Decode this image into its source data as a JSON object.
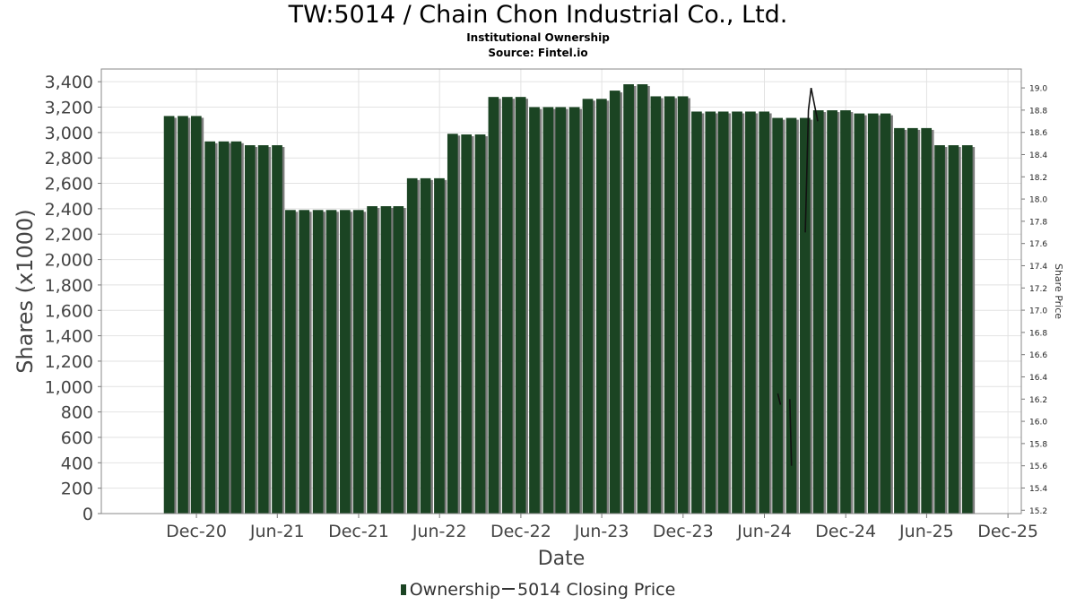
{
  "title": "TW:5014 / Chain Chon Industrial Co., Ltd.",
  "subtitle": "Institutional Ownership",
  "source": "Source: Fintel.io",
  "legend": {
    "ownership": "Ownership",
    "price": "5014 Closing Price"
  },
  "colors": {
    "bar": "#1b4423",
    "bar_shadow": "#7d7d7d",
    "line": "#111111",
    "plot_background": "#ffffff",
    "grid": "#e2e2e2"
  },
  "chart_data": {
    "type": "bar",
    "title": "TW:5014 / Chain Chon Industrial Co., Ltd.",
    "xlabel": "Date",
    "ylabel": "Shares (x1000)",
    "y2label": "Share Price",
    "ylim": [
      0,
      3500
    ],
    "y_ticks": [
      0,
      200,
      400,
      600,
      800,
      1000,
      1200,
      1400,
      1600,
      1800,
      2000,
      2200,
      2400,
      2600,
      2800,
      3000,
      3200,
      3400
    ],
    "y_tick_labels": [
      "0",
      "200",
      "400",
      "600",
      "800",
      "1,000",
      "1,200",
      "1,400",
      "1,600",
      "1,800",
      "2,000",
      "2,200",
      "2,400",
      "2,600",
      "2,800",
      "3,000",
      "3,200",
      "3,400"
    ],
    "y2lim": [
      15.17,
      19.17
    ],
    "y2_ticks": [
      15.2,
      15.4,
      15.6,
      15.8,
      16.0,
      16.2,
      16.4,
      16.6,
      16.8,
      17.0,
      17.2,
      17.4,
      17.6,
      17.8,
      18.0,
      18.2,
      18.4,
      18.6,
      18.8,
      19.0
    ],
    "y2_tick_labels": [
      "15.2",
      "15.4",
      "15.6",
      "15.8",
      "16.0",
      "16.2",
      "16.4",
      "16.6",
      "16.8",
      "17.0",
      "17.2",
      "17.4",
      "17.6",
      "17.8",
      "18.0",
      "18.2",
      "18.4",
      "18.6",
      "18.8",
      "19.0"
    ],
    "x_range": [
      "2020-05-01",
      "2025-12-31"
    ],
    "x_ticks": [
      {
        "date": "2020-12-01",
        "label": "Dec-20"
      },
      {
        "date": "2021-06-01",
        "label": "Jun-21"
      },
      {
        "date": "2021-12-01",
        "label": "Dec-21"
      },
      {
        "date": "2022-06-01",
        "label": "Jun-22"
      },
      {
        "date": "2022-12-01",
        "label": "Dec-22"
      },
      {
        "date": "2023-06-01",
        "label": "Jun-23"
      },
      {
        "date": "2023-12-01",
        "label": "Dec-23"
      },
      {
        "date": "2024-06-01",
        "label": "Jun-24"
      },
      {
        "date": "2024-12-01",
        "label": "Dec-24"
      },
      {
        "date": "2025-06-01",
        "label": "Jun-25"
      },
      {
        "date": "2025-12-01",
        "label": "Dec-25"
      }
    ],
    "grid": true,
    "legend_position": "bottom",
    "series": [
      {
        "name": "Ownership",
        "type": "bar",
        "axis": "left",
        "points": [
          {
            "date": "2020-10-01",
            "value": 3130
          },
          {
            "date": "2020-11-01",
            "value": 3130
          },
          {
            "date": "2020-12-01",
            "value": 3130
          },
          {
            "date": "2021-01-01",
            "value": 2930
          },
          {
            "date": "2021-02-01",
            "value": 2930
          },
          {
            "date": "2021-03-01",
            "value": 2930
          },
          {
            "date": "2021-04-01",
            "value": 2900
          },
          {
            "date": "2021-05-01",
            "value": 2900
          },
          {
            "date": "2021-06-01",
            "value": 2900
          },
          {
            "date": "2021-07-01",
            "value": 2390
          },
          {
            "date": "2021-08-01",
            "value": 2390
          },
          {
            "date": "2021-09-01",
            "value": 2390
          },
          {
            "date": "2021-10-01",
            "value": 2390
          },
          {
            "date": "2021-11-01",
            "value": 2390
          },
          {
            "date": "2021-12-01",
            "value": 2390
          },
          {
            "date": "2022-01-01",
            "value": 2420
          },
          {
            "date": "2022-02-01",
            "value": 2420
          },
          {
            "date": "2022-03-01",
            "value": 2420
          },
          {
            "date": "2022-04-01",
            "value": 2640
          },
          {
            "date": "2022-05-01",
            "value": 2640
          },
          {
            "date": "2022-06-01",
            "value": 2640
          },
          {
            "date": "2022-07-01",
            "value": 2990
          },
          {
            "date": "2022-08-01",
            "value": 2985
          },
          {
            "date": "2022-09-01",
            "value": 2985
          },
          {
            "date": "2022-10-01",
            "value": 3280
          },
          {
            "date": "2022-11-01",
            "value": 3280
          },
          {
            "date": "2022-12-01",
            "value": 3280
          },
          {
            "date": "2023-01-01",
            "value": 3200
          },
          {
            "date": "2023-02-01",
            "value": 3200
          },
          {
            "date": "2023-03-01",
            "value": 3200
          },
          {
            "date": "2023-04-01",
            "value": 3200
          },
          {
            "date": "2023-05-01",
            "value": 3265
          },
          {
            "date": "2023-06-01",
            "value": 3265
          },
          {
            "date": "2023-07-01",
            "value": 3330
          },
          {
            "date": "2023-08-01",
            "value": 3380
          },
          {
            "date": "2023-09-01",
            "value": 3380
          },
          {
            "date": "2023-10-01",
            "value": 3285
          },
          {
            "date": "2023-11-01",
            "value": 3285
          },
          {
            "date": "2023-12-01",
            "value": 3285
          },
          {
            "date": "2024-01-01",
            "value": 3165
          },
          {
            "date": "2024-02-01",
            "value": 3165
          },
          {
            "date": "2024-03-01",
            "value": 3165
          },
          {
            "date": "2024-04-01",
            "value": 3165
          },
          {
            "date": "2024-05-01",
            "value": 3165
          },
          {
            "date": "2024-06-01",
            "value": 3165
          },
          {
            "date": "2024-07-01",
            "value": 3115
          },
          {
            "date": "2024-08-01",
            "value": 3115
          },
          {
            "date": "2024-09-01",
            "value": 3115
          },
          {
            "date": "2024-10-01",
            "value": 3175
          },
          {
            "date": "2024-11-01",
            "value": 3175
          },
          {
            "date": "2024-12-01",
            "value": 3175
          },
          {
            "date": "2025-01-01",
            "value": 3150
          },
          {
            "date": "2025-02-01",
            "value": 3150
          },
          {
            "date": "2025-03-01",
            "value": 3150
          },
          {
            "date": "2025-04-01",
            "value": 3035
          },
          {
            "date": "2025-05-01",
            "value": 3035
          },
          {
            "date": "2025-06-01",
            "value": 3035
          },
          {
            "date": "2025-07-01",
            "value": 2900
          },
          {
            "date": "2025-08-01",
            "value": 2900
          },
          {
            "date": "2025-09-01",
            "value": 2900
          }
        ]
      },
      {
        "name": "5014 Closing Price",
        "type": "line",
        "axis": "right",
        "segments": [
          [
            {
              "date": "2024-07-01",
              "value": 16.25
            },
            {
              "date": "2024-07-07",
              "value": 16.15
            }
          ],
          [
            {
              "date": "2024-07-28",
              "value": 16.2
            },
            {
              "date": "2024-08-01",
              "value": 15.6
            }
          ],
          [
            {
              "date": "2024-09-01",
              "value": 17.7
            },
            {
              "date": "2024-09-08",
              "value": 18.8
            },
            {
              "date": "2024-09-14",
              "value": 19.0
            },
            {
              "date": "2024-09-24",
              "value": 18.8
            },
            {
              "date": "2024-09-29",
              "value": 18.7
            }
          ]
        ]
      }
    ]
  }
}
